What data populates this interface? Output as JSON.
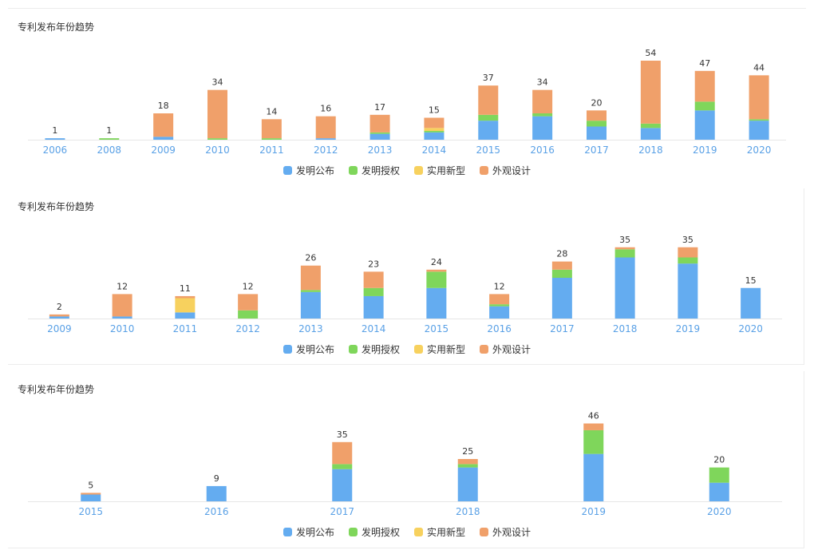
{
  "colors": {
    "faming_gongbu": "#64acf0",
    "faming_shouquan": "#7fd65b",
    "shiyong_xinxing": "#f7d15e",
    "waiguan_sheji": "#f0a06a",
    "axis_label": "#5aa1e6",
    "value_label": "#333333",
    "axis_line": "#e6e6e6"
  },
  "legend": [
    "发明公布",
    "发明授权",
    "实用新型",
    "外观设计"
  ],
  "chart_data": [
    {
      "type": "bar",
      "stacked": true,
      "title": "专利发布年份趋势",
      "categories": [
        "2006",
        "2008",
        "2009",
        "2010",
        "2011",
        "2012",
        "2013",
        "2014",
        "2015",
        "2016",
        "2017",
        "2018",
        "2019",
        "2020"
      ],
      "totals": [
        1,
        1,
        18,
        34,
        14,
        16,
        17,
        15,
        37,
        34,
        20,
        54,
        47,
        44
      ],
      "series": [
        {
          "name": "发明公布",
          "values": [
            1,
            0,
            2,
            0,
            0,
            1,
            4,
            5,
            13,
            16,
            9,
            8,
            20,
            13
          ]
        },
        {
          "name": "发明授权",
          "values": [
            0,
            1,
            0,
            1,
            1,
            0,
            1,
            1,
            4,
            2,
            4,
            3,
            6,
            1
          ]
        },
        {
          "name": "实用新型",
          "values": [
            0,
            0,
            0,
            0,
            0,
            0,
            0,
            2,
            0,
            0,
            0,
            0,
            0,
            0
          ]
        },
        {
          "name": "外观设计",
          "values": [
            0,
            0,
            16,
            33,
            13,
            15,
            12,
            7,
            20,
            16,
            7,
            43,
            21,
            30
          ]
        }
      ],
      "ylim": [
        0,
        60
      ]
    },
    {
      "type": "bar",
      "stacked": true,
      "title": "专利发布年份趋势",
      "categories": [
        "2009",
        "2010",
        "2011",
        "2012",
        "2013",
        "2014",
        "2015",
        "2016",
        "2017",
        "2018",
        "2019",
        "2020"
      ],
      "totals": [
        2,
        12,
        11,
        12,
        26,
        23,
        24,
        12,
        28,
        35,
        35,
        15
      ],
      "series": [
        {
          "name": "发明公布",
          "values": [
            1,
            1,
            3,
            0,
            13,
            11,
            15,
            6,
            20,
            30,
            27,
            15
          ]
        },
        {
          "name": "发明授权",
          "values": [
            0,
            0,
            0,
            4,
            1,
            4,
            8,
            1,
            4,
            4,
            3,
            0
          ]
        },
        {
          "name": "实用新型",
          "values": [
            0,
            0,
            7,
            0,
            0,
            0,
            0,
            0,
            0,
            0,
            0,
            0
          ]
        },
        {
          "name": "外观设计",
          "values": [
            1,
            11,
            1,
            8,
            12,
            8,
            1,
            5,
            4,
            1,
            5,
            0
          ]
        }
      ],
      "ylim": [
        0,
        40
      ]
    },
    {
      "type": "bar",
      "stacked": true,
      "title": "专利发布年份趋势",
      "categories": [
        "2015",
        "2016",
        "2017",
        "2018",
        "2019",
        "2020"
      ],
      "totals": [
        5,
        9,
        35,
        25,
        46,
        20
      ],
      "series": [
        {
          "name": "发明公布",
          "values": [
            4,
            9,
            19,
            20,
            28,
            11
          ]
        },
        {
          "name": "发明授权",
          "values": [
            0,
            0,
            3,
            2,
            14,
            9
          ]
        },
        {
          "name": "实用新型",
          "values": [
            0,
            0,
            0,
            0,
            0,
            0
          ]
        },
        {
          "name": "外观设计",
          "values": [
            1,
            0,
            13,
            3,
            4,
            0
          ]
        }
      ],
      "ylim": [
        0,
        50
      ]
    }
  ]
}
